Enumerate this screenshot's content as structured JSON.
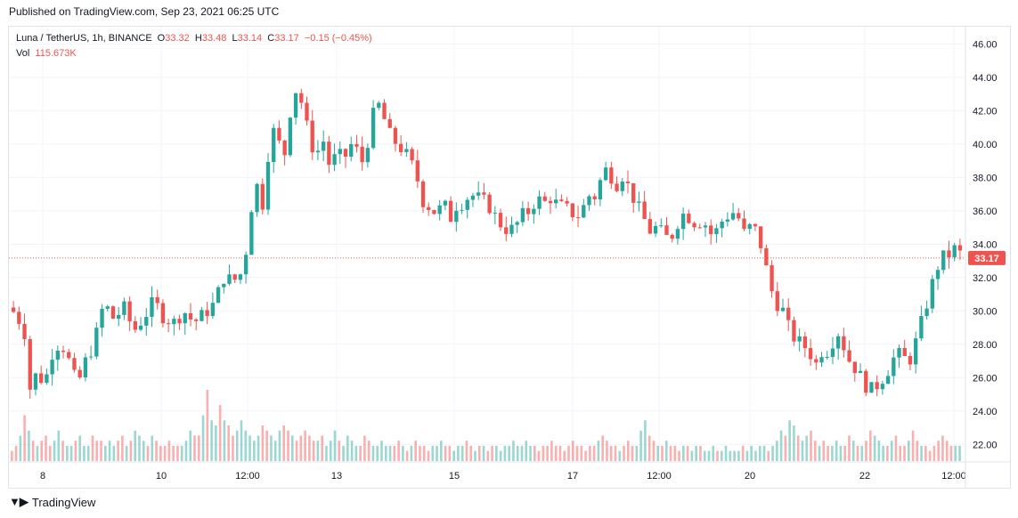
{
  "header": {
    "published": "Published on TradingView.com, Sep 23, 2021 06:25 UTC"
  },
  "legend": {
    "symbol": "Luna / TetherUS, 1h, BINANCE",
    "open_label": "O",
    "open": "33.32",
    "high_label": "H",
    "high": "33.48",
    "low_label": "L",
    "low": "33.14",
    "close_label": "C",
    "close": "33.17",
    "change": "−0.15 (−0.45%)",
    "vol_label": "Vol",
    "vol": "115.673K"
  },
  "footer": {
    "brand": "TradingView"
  },
  "colors": {
    "up": "#26a69a",
    "down": "#ef5350",
    "grid": "#f0f3fa",
    "price_tag": "#ef5350"
  },
  "chart_data": {
    "type": "candlestick",
    "y_ticks": [
      "22.00",
      "24.00",
      "26.00",
      "28.00",
      "30.00",
      "32.00",
      "34.00",
      "36.00",
      "38.00",
      "40.00",
      "42.00",
      "44.00",
      "46.00"
    ],
    "x_ticks": [
      "8",
      "10",
      "12:00",
      "13",
      "15",
      "17",
      "12:00",
      "20",
      "22",
      "12:00"
    ],
    "ylim": [
      21.0,
      46.5
    ],
    "last_price": "33.17",
    "last_price_value": 33.17,
    "grid": true,
    "series_close_path": [
      [
        0.0,
        30.2
      ],
      [
        0.8,
        29.0
      ],
      [
        1.2,
        25.0
      ],
      [
        1.6,
        26.5
      ],
      [
        2.0,
        25.5
      ],
      [
        2.5,
        27.5
      ],
      [
        3.0,
        28.2
      ],
      [
        3.5,
        27.0
      ],
      [
        4.0,
        25.5
      ],
      [
        4.5,
        27.0
      ],
      [
        5.0,
        28.0
      ],
      [
        5.6,
        30.5
      ],
      [
        6.2,
        29.5
      ],
      [
        6.8,
        30.2
      ],
      [
        7.4,
        28.8
      ],
      [
        8.0,
        29.6
      ],
      [
        8.6,
        30.6
      ],
      [
        9.2,
        29.6
      ],
      [
        9.8,
        29.3
      ],
      [
        10.4,
        30.0
      ],
      [
        11.0,
        29.3
      ],
      [
        11.6,
        29.8
      ],
      [
        12.2,
        30.4
      ],
      [
        12.8,
        32.0
      ],
      [
        13.4,
        31.8
      ],
      [
        14.0,
        32.4
      ],
      [
        14.4,
        36.0
      ],
      [
        14.8,
        37.5
      ],
      [
        15.2,
        36.2
      ],
      [
        15.6,
        41.0
      ],
      [
        16.0,
        40.5
      ],
      [
        16.4,
        39.0
      ],
      [
        16.8,
        42.0
      ],
      [
        17.2,
        43.5
      ],
      [
        17.6,
        42.0
      ],
      [
        18.0,
        40.0
      ],
      [
        18.4,
        39.5
      ],
      [
        18.8,
        40.2
      ],
      [
        19.2,
        38.5
      ],
      [
        19.6,
        39.5
      ],
      [
        20.0,
        39.0
      ],
      [
        20.4,
        40.0
      ],
      [
        20.8,
        39.6
      ],
      [
        21.2,
        38.8
      ],
      [
        21.6,
        41.0
      ],
      [
        22.0,
        42.6
      ],
      [
        22.4,
        41.6
      ],
      [
        22.8,
        40.5
      ],
      [
        23.2,
        40.0
      ],
      [
        23.6,
        39.6
      ],
      [
        24.0,
        39.0
      ],
      [
        24.4,
        38.0
      ],
      [
        24.8,
        36.5
      ],
      [
        25.2,
        36.2
      ],
      [
        25.6,
        35.8
      ],
      [
        26.0,
        36.5
      ],
      [
        26.4,
        35.5
      ],
      [
        26.8,
        36.4
      ],
      [
        27.2,
        36.5
      ],
      [
        27.6,
        37.0
      ],
      [
        28.0,
        36.8
      ],
      [
        28.4,
        36.6
      ],
      [
        28.8,
        36.2
      ],
      [
        29.2,
        35.5
      ],
      [
        29.6,
        35.0
      ],
      [
        30.0,
        34.8
      ],
      [
        30.4,
        35.2
      ],
      [
        30.8,
        35.8
      ],
      [
        31.2,
        36.0
      ],
      [
        31.6,
        36.8
      ],
      [
        32.0,
        36.4
      ],
      [
        32.4,
        36.8
      ],
      [
        32.8,
        36.4
      ],
      [
        33.2,
        36.2
      ],
      [
        33.6,
        36.0
      ],
      [
        34.0,
        35.6
      ],
      [
        34.4,
        36.2
      ],
      [
        34.8,
        37.0
      ],
      [
        35.2,
        36.8
      ],
      [
        35.6,
        38.6
      ],
      [
        36.0,
        38.2
      ],
      [
        36.4,
        37.6
      ],
      [
        36.8,
        38.2
      ],
      [
        37.2,
        37.2
      ],
      [
        37.6,
        36.4
      ],
      [
        38.0,
        35.6
      ],
      [
        38.4,
        34.8
      ],
      [
        38.8,
        35.0
      ],
      [
        39.2,
        34.6
      ],
      [
        39.6,
        34.2
      ],
      [
        40.0,
        35.2
      ],
      [
        40.4,
        35.8
      ],
      [
        40.8,
        35.6
      ],
      [
        41.2,
        35.2
      ],
      [
        41.6,
        35.5
      ],
      [
        42.0,
        34.6
      ],
      [
        42.4,
        34.8
      ],
      [
        42.8,
        35.5
      ],
      [
        43.2,
        35.8
      ],
      [
        43.6,
        36.0
      ],
      [
        44.0,
        34.6
      ],
      [
        44.4,
        35.0
      ],
      [
        44.8,
        34.8
      ],
      [
        45.2,
        33.5
      ],
      [
        45.6,
        31.5
      ],
      [
        46.0,
        30.5
      ],
      [
        46.4,
        30.0
      ],
      [
        46.8,
        28.8
      ],
      [
        47.2,
        28.2
      ],
      [
        47.6,
        28.0
      ],
      [
        48.0,
        27.5
      ],
      [
        48.4,
        26.8
      ],
      [
        48.8,
        27.8
      ],
      [
        49.2,
        27.5
      ],
      [
        49.6,
        29.0
      ],
      [
        50.0,
        28.0
      ],
      [
        50.4,
        27.0
      ],
      [
        50.8,
        26.5
      ],
      [
        51.2,
        25.8
      ],
      [
        51.6,
        25.2
      ],
      [
        52.0,
        25.5
      ],
      [
        52.4,
        26.0
      ],
      [
        52.8,
        26.6
      ],
      [
        53.2,
        27.5
      ],
      [
        53.6,
        27.2
      ],
      [
        54.0,
        27.0
      ],
      [
        54.4,
        28.2
      ],
      [
        54.8,
        29.6
      ],
      [
        55.2,
        31.0
      ],
      [
        55.6,
        32.5
      ],
      [
        56.0,
        33.2
      ],
      [
        56.4,
        33.4
      ],
      [
        56.8,
        33.8
      ],
      [
        57.2,
        33.17
      ]
    ],
    "x_range": [
      0,
      57.6
    ],
    "volume_profile": [
      2,
      3,
      5,
      9,
      6,
      4,
      3,
      4,
      5,
      3,
      4,
      6,
      4,
      3,
      3,
      4,
      5,
      3,
      3,
      5,
      4,
      4,
      3,
      4,
      3,
      4,
      5,
      3,
      4,
      6,
      5,
      4,
      3,
      5,
      4,
      3,
      3,
      4,
      3,
      3,
      3,
      4,
      6,
      5,
      5,
      9,
      14,
      8,
      7,
      11,
      8,
      7,
      5,
      6,
      8,
      6,
      5,
      4,
      5,
      7,
      6,
      5,
      4,
      6,
      7,
      6,
      5,
      4,
      5,
      6,
      5,
      4,
      4,
      5,
      3,
      4,
      6,
      4,
      3,
      5,
      4,
      3,
      3,
      5,
      4,
      3,
      3,
      4,
      3,
      3,
      3,
      4,
      3,
      2,
      3,
      4,
      3,
      3,
      2,
      3,
      3,
      4,
      3,
      3,
      2,
      3,
      3,
      4,
      3,
      2,
      3,
      3,
      2,
      3,
      3,
      2,
      3,
      3,
      4,
      3,
      3,
      4,
      3,
      3,
      2,
      3,
      3,
      4,
      3,
      3,
      2,
      3,
      4,
      3,
      3,
      2,
      3,
      3,
      4,
      5,
      4,
      3,
      3,
      2,
      3,
      4,
      3,
      3,
      6,
      8,
      5,
      4,
      3,
      3,
      4,
      3,
      3,
      2,
      3,
      3,
      2,
      3,
      3,
      2,
      2,
      3,
      2,
      2,
      3,
      2,
      2,
      2,
      3,
      2,
      3,
      2,
      3,
      3,
      2,
      3,
      4,
      6,
      5,
      8,
      7,
      5,
      4,
      5,
      6,
      4,
      3,
      4,
      3,
      3,
      4,
      3,
      3,
      5,
      4,
      3,
      3,
      4,
      6,
      5,
      4,
      3,
      3,
      4,
      5,
      3,
      3,
      4,
      6,
      4,
      3,
      3,
      2,
      3,
      4,
      5,
      4,
      3,
      3,
      3
    ]
  }
}
